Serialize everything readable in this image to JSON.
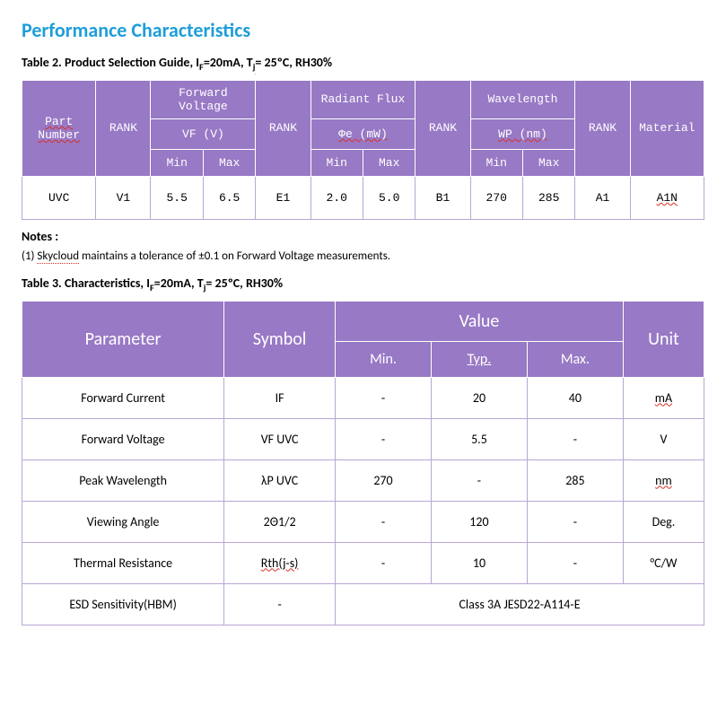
{
  "section_title": "Performance Characteristics",
  "table2": {
    "caption_prefix": "Table 2. Product Selection Guide, I",
    "caption_sub1": "F",
    "caption_mid": "=20mA, T",
    "caption_sub2": "j",
    "caption_suffix": "= 25ºC, RH30%",
    "headers": {
      "part_number": "Part Number",
      "rank": "RANK",
      "forward_voltage": "Forward Voltage",
      "vf_v": "VF (V)",
      "radiant_flux": "Radiant Flux",
      "phi_e": "Φe (mW)",
      "wavelength": "Wavelength",
      "wp_nm": "WP (nm)",
      "material": "Material",
      "min": "Min",
      "max": "Max"
    },
    "row": {
      "part": "UVC",
      "rank_v": "V1",
      "vf_min": "5.5",
      "vf_max": "6.5",
      "rank_e": "E1",
      "phi_min": "2.0",
      "phi_max": "5.0",
      "rank_b": "B1",
      "wp_min": "270",
      "wp_max": "285",
      "rank_a": "A1",
      "material": "A1N"
    }
  },
  "notes_label": "Notes :",
  "note1_prefix": "(1) ",
  "note1_company": "Skycloud",
  "note1_rest": " maintains a tolerance of  ±0.1 on Forward Voltage measurements.",
  "table3": {
    "caption_prefix": "Table 3. Characteristics, I",
    "caption_sub1": "F",
    "caption_mid": "=20mA, T",
    "caption_sub2": "j",
    "caption_suffix": "= 25ºC, RH30%",
    "headers": {
      "parameter": "Parameter",
      "symbol": "Symbol",
      "value": "Value",
      "unit": "Unit",
      "min": "Min.",
      "typ": "Typ.",
      "max": "Max."
    },
    "rows": [
      {
        "param": "Forward Current",
        "symbol": "IF",
        "min": "-",
        "typ": "20",
        "max": "40",
        "unit": "mA",
        "wavy_sym": false,
        "wavy_unit": true
      },
      {
        "param": "Forward Voltage",
        "symbol": "VF UVC",
        "min": "-",
        "typ": "5.5",
        "max": "-",
        "unit": "V",
        "wavy_sym": false,
        "wavy_unit": false
      },
      {
        "param": "Peak Wavelength",
        "symbol": "λP UVC",
        "min": "270",
        "typ": "-",
        "max": "285",
        "unit": "nm",
        "wavy_sym": false,
        "wavy_unit": true
      },
      {
        "param": "Viewing Angle",
        "symbol": "2Θ1/2",
        "min": "-",
        "typ": "120",
        "max": "-",
        "unit": "Deg.",
        "wavy_sym": false,
        "wavy_unit": false
      },
      {
        "param": "Thermal Resistance",
        "symbol": "Rth(j-s)",
        "min": "-",
        "typ": "10",
        "max": "-",
        "unit": "°C/W",
        "wavy_sym": true,
        "wavy_unit": false
      }
    ],
    "esd_row": {
      "param": "ESD Sensitivity(HBM)",
      "symbol": "-",
      "value": "Class 3A JESD22-A114-E"
    }
  },
  "colors": {
    "header_bg": "#9879c5",
    "header_fg": "#ffffff",
    "cell_border": "#b8a6d6",
    "title_color": "#1f9ed8",
    "wavy_red": "#d93025"
  }
}
